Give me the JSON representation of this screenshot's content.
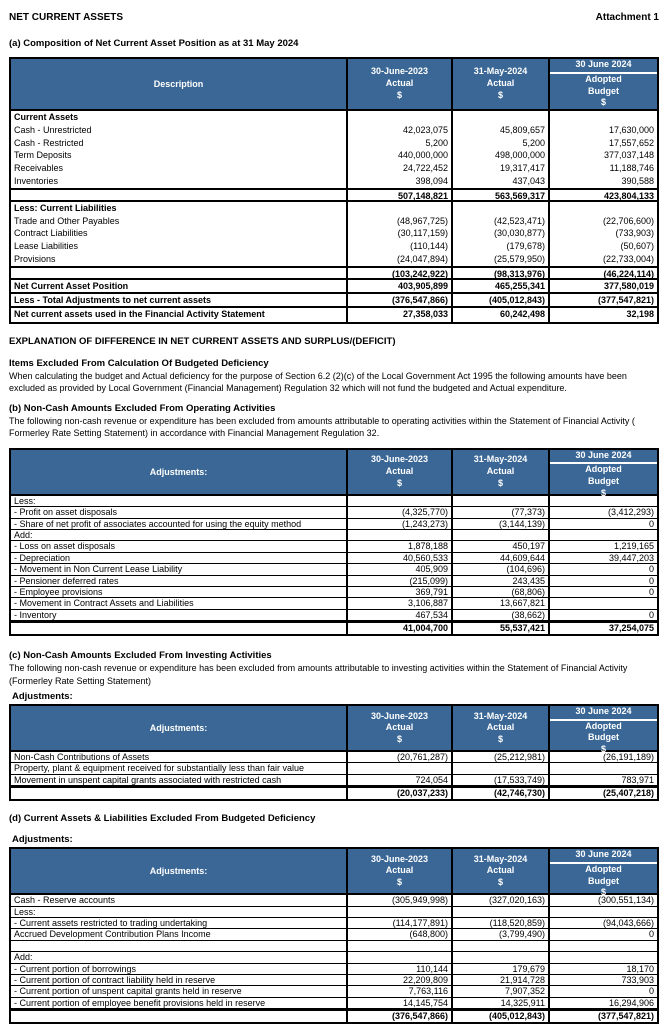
{
  "doc": {
    "title": "NET CURRENT ASSETS",
    "attachment": "Attachment 1"
  },
  "colors": {
    "header_bg": "#3a6795",
    "header_text": "#ffffff"
  },
  "col_headers": {
    "c1_line1": "30-June-2023",
    "c1_line2": "Actual",
    "c1_line3": "$",
    "c2_line1": "31-May-2024",
    "c2_line2": "Actual",
    "c2_line3": "$",
    "c3_top": "30 June 2024",
    "c3_line1": "Adopted",
    "c3_line2": "Budget",
    "c3_line3": "$"
  },
  "section_a": {
    "heading": "(a) Composition of  Net Current Asset Position as at 31 May 2024",
    "table": {
      "first_col": "Description",
      "rows": [
        {
          "t": "section",
          "label": "Current Assets",
          "v": [
            "",
            "",
            ""
          ]
        },
        {
          "t": "item",
          "label": "Cash - Unrestricted",
          "v": [
            "42,023,075",
            "45,809,657",
            "17,630,000"
          ]
        },
        {
          "t": "item",
          "label": "Cash - Restricted",
          "v": [
            "5,200",
            "5,200",
            "17,557,652"
          ]
        },
        {
          "t": "item",
          "label": "Term Deposits",
          "v": [
            "440,000,000",
            "498,000,000",
            "377,037,148"
          ]
        },
        {
          "t": "item",
          "label": "Receivables",
          "v": [
            "24,722,452",
            "19,317,417",
            "11,188,746"
          ]
        },
        {
          "t": "item",
          "label": "Inventories",
          "v": [
            "398,094",
            "437,043",
            "390,588"
          ]
        },
        {
          "t": "subtotal",
          "label": "",
          "v": [
            "507,148,821",
            "563,569,317",
            "423,804,133"
          ]
        },
        {
          "t": "section",
          "label": "Less: Current Liabilities",
          "v": [
            "",
            "",
            ""
          ]
        },
        {
          "t": "item",
          "label": "Trade and Other Payables",
          "v": [
            "(48,967,725)",
            "(42,523,471)",
            "(22,706,600)"
          ]
        },
        {
          "t": "item",
          "label": "Contract Liabilities",
          "v": [
            "(30,117,159)",
            "(30,030,877)",
            "(733,903)"
          ]
        },
        {
          "t": "item",
          "label": "Lease Liabilities",
          "v": [
            "(110,144)",
            "(179,678)",
            "(50,607)"
          ]
        },
        {
          "t": "item",
          "label": "Provisions",
          "v": [
            "(24,047,894)",
            "(25,579,950)",
            "(22,733,004)"
          ]
        },
        {
          "t": "subtotal",
          "label": "",
          "v": [
            "(103,242,922)",
            "(98,313,976)",
            "(46,224,114)"
          ]
        },
        {
          "t": "boldline",
          "label": "Net Current Asset Position",
          "v": [
            "403,905,899",
            "465,255,341",
            "377,580,019"
          ]
        },
        {
          "t": "boldline",
          "label": "Less - Total Adjustments to net current assets",
          "v": [
            "(376,547,866)",
            "(405,012,843)",
            "(377,547,821)"
          ]
        },
        {
          "t": "boldline",
          "label": "Net current assets used in the Financial Activity Statement",
          "v": [
            "27,358,033",
            "60,242,498",
            "32,198"
          ]
        }
      ]
    }
  },
  "explanation": {
    "heading": "EXPLANATION OF DIFFERENCE IN NET CURRENT ASSETS AND SURPLUS/(DEFICIT)",
    "sub_heading": "Items Excluded From Calculation Of Budgeted Deficiency",
    "body": "When calculating the budget and Actual deficiency for the purpose of Section 6.2 (2)(c) of the Local Government Act 1995 the following amounts have been excluded as provided by Local Government (Financial Management) Regulation 32 which will not fund the budgeted  and Actual expenditure."
  },
  "section_b": {
    "heading": "(b) Non-Cash Amounts Excluded From Operating Activities",
    "body": "The following non-cash revenue or expenditure has been excluded from amounts attributable to operating activities within the Statement of Financial Activity ( Formerley Rate Setting Statement) in accordance with Financial Management Regulation 32.",
    "table": {
      "first_col": "Adjustments:",
      "rows": [
        {
          "t": "item",
          "label": "Less:",
          "v": [
            "",
            "",
            ""
          ]
        },
        {
          "t": "item",
          "label": "- Profit on asset disposals",
          "v": [
            "(4,325,770)",
            "(77,373)",
            "(3,412,293)"
          ]
        },
        {
          "t": "item",
          "label": "- Share of net profit of associates accounted for using the equity method",
          "v": [
            "(1,243,273)",
            "(3,144,139)",
            "0"
          ]
        },
        {
          "t": "item",
          "label": "Add:",
          "v": [
            "",
            "",
            ""
          ]
        },
        {
          "t": "item",
          "label": "-  Loss on asset disposals",
          "v": [
            "1,878,188",
            "450,197",
            "1,219,165"
          ]
        },
        {
          "t": "item",
          "label": "- Depreciation",
          "v": [
            "40,560,533",
            "44,609,644",
            "39,447,203"
          ]
        },
        {
          "t": "item",
          "label": "- Movement in Non Current Lease Liability",
          "v": [
            "405,909",
            "(104,696)",
            "0"
          ]
        },
        {
          "t": "item",
          "label": "- Pensioner deferred rates",
          "v": [
            "(215,099)",
            "243,435",
            "0"
          ]
        },
        {
          "t": "item",
          "label": "- Employee provisions",
          "v": [
            "369,791",
            "(68,806)",
            "0"
          ]
        },
        {
          "t": "item",
          "label": "- Movement in Contract Assets and Liabilities",
          "v": [
            "3,106,887",
            "13,667,821",
            ""
          ]
        },
        {
          "t": "item",
          "label": "- Inventory",
          "v": [
            "467,534",
            "(38,662)",
            "0"
          ]
        },
        {
          "t": "total",
          "label": "",
          "v": [
            "41,004,700",
            "55,537,421",
            "37,254,075"
          ]
        }
      ]
    }
  },
  "section_c": {
    "heading": "(c)  Non-Cash Amounts Excluded From Investing Activities",
    "body": "The following non-cash revenue or expenditure has been excluded from amounts attributable to investing activities within the Statement of Financial Activity (Formerley Rate Setting Statement)",
    "adjustments_label": "Adjustments:",
    "table": {
      "first_col": "Adjustments:",
      "rows": [
        {
          "t": "item",
          "label": "Non-Cash Contributions of Assets",
          "v": [
            "(20,761,287)",
            "(25,212,981)",
            "(26,191,189)"
          ]
        },
        {
          "t": "item",
          "label": "Property, plant & equipment received for substantially less than fair value",
          "v": [
            "",
            "",
            ""
          ]
        },
        {
          "t": "item",
          "label": "Movement in unspent capital grants associated with restricted cash",
          "v": [
            "724,054",
            "(17,533,749)",
            "783,971"
          ]
        },
        {
          "t": "total",
          "label": "",
          "v": [
            "(20,037,233)",
            "(42,746,730)",
            "(25,407,218)"
          ]
        }
      ]
    }
  },
  "section_d": {
    "heading": "(d) Current Assets & Liabilities Excluded From Budgeted Deficiency",
    "adjustments_label": "Adjustments:",
    "table": {
      "first_col": "Adjustments:",
      "rows": [
        {
          "t": "item",
          "label": "Cash - Reserve accounts",
          "v": [
            "(305,949,998)",
            "(327,020,163)",
            "(300,551,134)"
          ]
        },
        {
          "t": "item",
          "label": "Less:",
          "v": [
            "",
            "",
            ""
          ]
        },
        {
          "t": "item",
          "label": "- Current assets restricted to trading undertaking",
          "v": [
            "(114,177,891)",
            "(118,520,859)",
            "(94,043,666)"
          ]
        },
        {
          "t": "item",
          "label": "Accrued Development Contribution Plans Income",
          "v": [
            "(648,800)",
            "(3,799,490)",
            "0"
          ]
        },
        {
          "t": "blank",
          "label": "",
          "v": [
            "",
            "",
            ""
          ]
        },
        {
          "t": "item",
          "label": "Add:",
          "v": [
            "",
            "",
            ""
          ]
        },
        {
          "t": "item",
          "label": "- Current portion of borrowings",
          "v": [
            "110,144",
            "179,679",
            "18,170"
          ]
        },
        {
          "t": "item",
          "label": "- Current portion of contract liability held in reserve",
          "v": [
            "22,209,809",
            "21,914,728",
            "733,903"
          ]
        },
        {
          "t": "item",
          "label": "- Current portion of unspent capital grants held in reserve",
          "v": [
            "7,763,116",
            "7,907,352",
            "0"
          ]
        },
        {
          "t": "item",
          "label": "- Current portion of employee benefit provisions held in reserve",
          "v": [
            "14,145,754",
            "14,325,911",
            "16,294,906"
          ]
        },
        {
          "t": "total",
          "label": "",
          "v": [
            "(376,547,866)",
            "(405,012,843)",
            "(377,547,821)"
          ]
        }
      ]
    }
  }
}
